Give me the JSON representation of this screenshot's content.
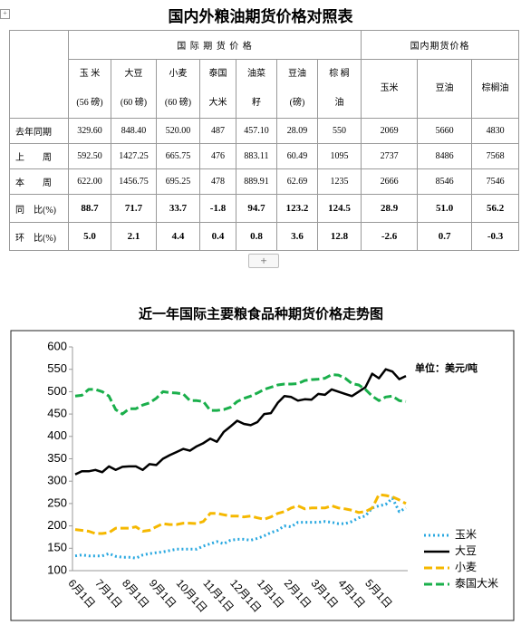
{
  "title": "国内外粮油期货价格对照表",
  "table": {
    "group_headers": [
      "国 际 期 货 价 格",
      "国内期货价格"
    ],
    "columns": [
      [
        "玉 米",
        "(56 磅)"
      ],
      [
        "大豆",
        "(60 磅)"
      ],
      [
        "小麦",
        "(60 磅)"
      ],
      [
        "泰国",
        "大米"
      ],
      [
        "油菜",
        "籽"
      ],
      [
        "豆油",
        "(磅)"
      ],
      [
        "棕 榈",
        "油"
      ],
      [
        "玉米"
      ],
      [
        "豆油"
      ],
      [
        "棕榈油"
      ]
    ],
    "rows": [
      {
        "label": "去年同期",
        "cells": [
          "329.60",
          "848.40",
          "520.00",
          "487",
          "457.10",
          "28.09",
          "550",
          "2069",
          "5660",
          "4830"
        ]
      },
      {
        "label": "上　　周",
        "cells": [
          "592.50",
          "1427.25",
          "665.75",
          "476",
          "883.11",
          "60.49",
          "1095",
          "2737",
          "8486",
          "7568"
        ]
      },
      {
        "label": "本　　周",
        "cells": [
          "622.00",
          "1456.75",
          "695.25",
          "478",
          "889.91",
          "62.69",
          "1235",
          "2666",
          "8546",
          "7546"
        ]
      },
      {
        "label": "同　比(%)",
        "cells": [
          "88.7",
          "71.7",
          "33.7",
          "-1.8",
          "94.7",
          "123.2",
          "124.5",
          "28.9",
          "51.0",
          "56.2"
        ]
      },
      {
        "label": "环　比(%)",
        "cells": [
          "5.0",
          "2.1",
          "4.4",
          "0.4",
          "0.8",
          "3.6",
          "12.8",
          "-2.6",
          "0.7",
          "-0.3"
        ]
      }
    ]
  },
  "chart_data": {
    "type": "line",
    "title": "近一年国际主要粮食品种期货价格走势图",
    "annotation": "单位：美元/吨",
    "categories": [
      "6月1日",
      null,
      null,
      null,
      "7月1日",
      null,
      null,
      null,
      "8月1日",
      null,
      null,
      null,
      "9月1日",
      null,
      null,
      null,
      "10月1日",
      null,
      null,
      null,
      "11月1日",
      null,
      null,
      null,
      "12月1日",
      null,
      null,
      null,
      "1月1日",
      null,
      null,
      null,
      "2月1日",
      null,
      null,
      null,
      "3月1日",
      null,
      null,
      null,
      "4月1日",
      null,
      null,
      null,
      "5月1日",
      null,
      null,
      null,
      null,
      null
    ],
    "ylim": [
      100,
      600
    ],
    "yticks": [
      100,
      150,
      200,
      250,
      300,
      350,
      400,
      450,
      500,
      550,
      600
    ],
    "series": [
      {
        "name": "玉米",
        "color": "#29a8e0",
        "dash": "dotted",
        "values": [
          133,
          135,
          133,
          133,
          133,
          138,
          132,
          130,
          130,
          128,
          135,
          138,
          140,
          142,
          145,
          148,
          148,
          148,
          148,
          155,
          160,
          165,
          160,
          168,
          170,
          170,
          168,
          172,
          178,
          185,
          190,
          200,
          198,
          208,
          208,
          208,
          208,
          210,
          208,
          205,
          205,
          210,
          218,
          222,
          240,
          245,
          248,
          262,
          232,
          240
        ]
      },
      {
        "name": "大豆",
        "color": "#000000",
        "dash": "solid",
        "values": [
          315,
          322,
          322,
          325,
          320,
          333,
          325,
          332,
          333,
          333,
          325,
          338,
          336,
          350,
          358,
          365,
          372,
          368,
          378,
          385,
          395,
          388,
          410,
          422,
          435,
          428,
          425,
          432,
          450,
          452,
          475,
          490,
          488,
          480,
          483,
          482,
          495,
          493,
          505,
          500,
          495,
          490,
          500,
          510,
          540,
          530,
          550,
          545,
          528,
          535
        ]
      },
      {
        "name": "小麦",
        "color": "#f5b800",
        "dash": "dashed",
        "values": [
          192,
          190,
          188,
          183,
          183,
          185,
          195,
          195,
          195,
          198,
          188,
          190,
          198,
          205,
          203,
          203,
          206,
          206,
          205,
          210,
          228,
          228,
          225,
          222,
          222,
          220,
          222,
          218,
          215,
          220,
          228,
          232,
          240,
          245,
          238,
          240,
          240,
          240,
          245,
          240,
          238,
          235,
          230,
          232,
          240,
          270,
          268,
          265,
          258,
          250
        ]
      },
      {
        "name": "泰国大米",
        "color": "#1aaf4b",
        "dash": "dashed",
        "values": [
          490,
          492,
          505,
          505,
          500,
          490,
          460,
          450,
          462,
          462,
          470,
          475,
          485,
          500,
          498,
          497,
          495,
          480,
          480,
          478,
          458,
          458,
          460,
          465,
          478,
          485,
          490,
          497,
          505,
          510,
          515,
          517,
          517,
          518,
          525,
          527,
          528,
          530,
          538,
          537,
          530,
          518,
          515,
          505,
          490,
          480,
          488,
          490,
          480,
          478
        ]
      }
    ]
  }
}
